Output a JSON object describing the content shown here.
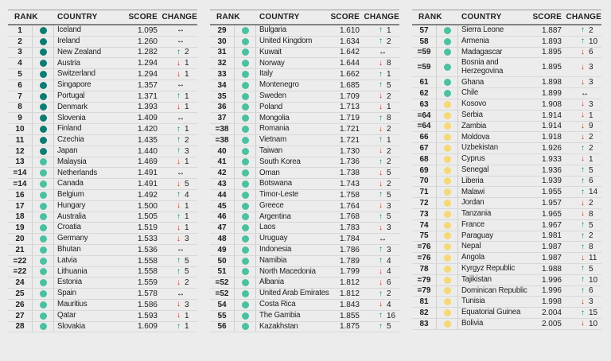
{
  "headers": {
    "rank": "RANK",
    "country": "COUNTRY",
    "score": "SCORE",
    "change": "CHANGE"
  },
  "icons": {
    "up": "↑",
    "down": "↓",
    "same": "↔"
  },
  "palette": {
    "tier_dark": "#0e7c72",
    "tier_green": "#4cc0a1",
    "tier_yellow": "#f5d878",
    "up": "#1e7d5a",
    "down": "#bf3527",
    "same": "#111111",
    "bg": "#ececec"
  },
  "tables": [
    {
      "rows": [
        {
          "rank": "1",
          "t": "dark",
          "country": "Iceland",
          "score": "1.095",
          "dir": "same",
          "n": ""
        },
        {
          "rank": "2",
          "t": "dark",
          "country": "Ireland",
          "score": "1.260",
          "dir": "same",
          "n": ""
        },
        {
          "rank": "3",
          "t": "dark",
          "country": "New Zealand",
          "score": "1.282",
          "dir": "up",
          "n": "2"
        },
        {
          "rank": "4",
          "t": "dark",
          "country": "Austria",
          "score": "1.294",
          "dir": "down",
          "n": "1"
        },
        {
          "rank": "5",
          "t": "dark",
          "country": "Switzerland",
          "score": "1.294",
          "dir": "down",
          "n": "1"
        },
        {
          "rank": "6",
          "t": "dark",
          "country": "Singapore",
          "score": "1.357",
          "dir": "same",
          "n": ""
        },
        {
          "rank": "7",
          "t": "dark",
          "country": "Portugal",
          "score": "1.371",
          "dir": "up",
          "n": "1"
        },
        {
          "rank": "8",
          "t": "dark",
          "country": "Denmark",
          "score": "1.393",
          "dir": "down",
          "n": "1"
        },
        {
          "rank": "9",
          "t": "dark",
          "country": "Slovenia",
          "score": "1.409",
          "dir": "same",
          "n": ""
        },
        {
          "rank": "10",
          "t": "dark",
          "country": "Finland",
          "score": "1.420",
          "dir": "up",
          "n": "1"
        },
        {
          "rank": "11",
          "t": "dark",
          "country": "Czechia",
          "score": "1.435",
          "dir": "up",
          "n": "2"
        },
        {
          "rank": "12",
          "t": "dark",
          "country": "Japan",
          "score": "1.440",
          "dir": "up",
          "n": "3"
        },
        {
          "rank": "13",
          "t": "green",
          "country": "Malaysia",
          "score": "1.469",
          "dir": "down",
          "n": "1"
        },
        {
          "rank": "=14",
          "t": "green",
          "country": "Netherlands",
          "score": "1.491",
          "dir": "same",
          "n": ""
        },
        {
          "rank": "=14",
          "t": "green",
          "country": "Canada",
          "score": "1.491",
          "dir": "down",
          "n": "5"
        },
        {
          "rank": "16",
          "t": "green",
          "country": "Belgium",
          "score": "1.492",
          "dir": "up",
          "n": "4"
        },
        {
          "rank": "17",
          "t": "green",
          "country": "Hungary",
          "score": "1.500",
          "dir": "down",
          "n": "1"
        },
        {
          "rank": "18",
          "t": "green",
          "country": "Australia",
          "score": "1.505",
          "dir": "up",
          "n": "1"
        },
        {
          "rank": "19",
          "t": "green",
          "country": "Croatia",
          "score": "1.519",
          "dir": "down",
          "n": "1"
        },
        {
          "rank": "20",
          "t": "green",
          "country": "Germany",
          "score": "1.533",
          "dir": "down",
          "n": "3"
        },
        {
          "rank": "21",
          "t": "green",
          "country": "Bhutan",
          "score": "1.536",
          "dir": "same",
          "n": ""
        },
        {
          "rank": "=22",
          "t": "green",
          "country": "Latvia",
          "score": "1.558",
          "dir": "up",
          "n": "5"
        },
        {
          "rank": "=22",
          "t": "green",
          "country": "Lithuania",
          "score": "1.558",
          "dir": "up",
          "n": "5"
        },
        {
          "rank": "24",
          "t": "green",
          "country": "Estonia",
          "score": "1.559",
          "dir": "down",
          "n": "2"
        },
        {
          "rank": "25",
          "t": "green",
          "country": "Spain",
          "score": "1.578",
          "dir": "same",
          "n": ""
        },
        {
          "rank": "26",
          "t": "green",
          "country": "Mauritius",
          "score": "1.586",
          "dir": "down",
          "n": "3"
        },
        {
          "rank": "27",
          "t": "green",
          "country": "Qatar",
          "score": "1.593",
          "dir": "down",
          "n": "1"
        },
        {
          "rank": "28",
          "t": "green",
          "country": "Slovakia",
          "score": "1.609",
          "dir": "up",
          "n": "1"
        }
      ]
    },
    {
      "rows": [
        {
          "rank": "29",
          "t": "green",
          "country": "Bulgaria",
          "score": "1.610",
          "dir": "up",
          "n": "1"
        },
        {
          "rank": "30",
          "t": "green",
          "country": "United Kingdom",
          "score": "1.634",
          "dir": "up",
          "n": "2"
        },
        {
          "rank": "31",
          "t": "green",
          "country": "Kuwait",
          "score": "1.642",
          "dir": "same",
          "n": ""
        },
        {
          "rank": "32",
          "t": "green",
          "country": "Norway",
          "score": "1.644",
          "dir": "down",
          "n": "8"
        },
        {
          "rank": "33",
          "t": "green",
          "country": "Italy",
          "score": "1.662",
          "dir": "up",
          "n": "1"
        },
        {
          "rank": "34",
          "t": "green",
          "country": "Montenegro",
          "score": "1.685",
          "dir": "up",
          "n": "5"
        },
        {
          "rank": "35",
          "t": "green",
          "country": "Sweden",
          "score": "1.709",
          "dir": "down",
          "n": "2"
        },
        {
          "rank": "36",
          "t": "green",
          "country": "Poland",
          "score": "1.713",
          "dir": "down",
          "n": "1"
        },
        {
          "rank": "37",
          "t": "green",
          "country": "Mongolia",
          "score": "1.719",
          "dir": "up",
          "n": "8"
        },
        {
          "rank": "=38",
          "t": "green",
          "country": "Romania",
          "score": "1.721",
          "dir": "down",
          "n": "2"
        },
        {
          "rank": "=38",
          "t": "green",
          "country": "Vietnam",
          "score": "1.721",
          "dir": "up",
          "n": "1"
        },
        {
          "rank": "40",
          "t": "green",
          "country": "Taiwan",
          "score": "1.730",
          "dir": "down",
          "n": "2"
        },
        {
          "rank": "41",
          "t": "green",
          "country": "South Korea",
          "score": "1.736",
          "dir": "up",
          "n": "2"
        },
        {
          "rank": "42",
          "t": "green",
          "country": "Oman",
          "score": "1.738",
          "dir": "down",
          "n": "5"
        },
        {
          "rank": "43",
          "t": "green",
          "country": "Botswana",
          "score": "1.743",
          "dir": "down",
          "n": "2"
        },
        {
          "rank": "44",
          "t": "green",
          "country": "Timor-Leste",
          "score": "1.758",
          "dir": "up",
          "n": "5"
        },
        {
          "rank": "45",
          "t": "green",
          "country": "Greece",
          "score": "1.764",
          "dir": "down",
          "n": "3"
        },
        {
          "rank": "46",
          "t": "green",
          "country": "Argentina",
          "score": "1.768",
          "dir": "up",
          "n": "5"
        },
        {
          "rank": "47",
          "t": "green",
          "country": "Laos",
          "score": "1.783",
          "dir": "down",
          "n": "3"
        },
        {
          "rank": "48",
          "t": "green",
          "country": "Uruguay",
          "score": "1.784",
          "dir": "same",
          "n": ""
        },
        {
          "rank": "49",
          "t": "green",
          "country": "Indonesia",
          "score": "1.786",
          "dir": "up",
          "n": "3"
        },
        {
          "rank": "50",
          "t": "green",
          "country": "Namibia",
          "score": "1.789",
          "dir": "up",
          "n": "4"
        },
        {
          "rank": "51",
          "t": "green",
          "country": "North Macedonia",
          "score": "1.799",
          "dir": "down",
          "n": "4"
        },
        {
          "rank": "=52",
          "t": "green",
          "country": "Albania",
          "score": "1.812",
          "dir": "down",
          "n": "6"
        },
        {
          "rank": "=52",
          "t": "green",
          "country": "United Arab Emirates",
          "score": "1.812",
          "dir": "up",
          "n": "2"
        },
        {
          "rank": "54",
          "t": "green",
          "country": "Costa Rica",
          "score": "1.843",
          "dir": "down",
          "n": "4"
        },
        {
          "rank": "55",
          "t": "green",
          "country": "The Gambia",
          "score": "1.855",
          "dir": "up",
          "n": "16"
        },
        {
          "rank": "56",
          "t": "green",
          "country": "Kazakhstan",
          "score": "1.875",
          "dir": "up",
          "n": "5"
        }
      ]
    },
    {
      "rows": [
        {
          "rank": "57",
          "t": "green",
          "country": "Sierra Leone",
          "score": "1.887",
          "dir": "up",
          "n": "2"
        },
        {
          "rank": "58",
          "t": "green",
          "country": "Armenia",
          "score": "1.893",
          "dir": "up",
          "n": "10"
        },
        {
          "rank": "=59",
          "t": "green",
          "country": "Madagascar",
          "score": "1.895",
          "dir": "down",
          "n": "6"
        },
        {
          "rank": "=59",
          "t": "green",
          "country": "Bosnia and Herzegovina",
          "score": "1.895",
          "dir": "down",
          "n": "3"
        },
        {
          "rank": "61",
          "t": "green",
          "country": "Ghana",
          "score": "1.898",
          "dir": "down",
          "n": "3"
        },
        {
          "rank": "62",
          "t": "green",
          "country": "Chile",
          "score": "1.899",
          "dir": "same",
          "n": ""
        },
        {
          "rank": "63",
          "t": "yellow",
          "country": "Kosovo",
          "score": "1.908",
          "dir": "down",
          "n": "3"
        },
        {
          "rank": "=64",
          "t": "yellow",
          "country": "Serbia",
          "score": "1.914",
          "dir": "down",
          "n": "1"
        },
        {
          "rank": "=64",
          "t": "yellow",
          "country": "Zambia",
          "score": "1.914",
          "dir": "down",
          "n": "9"
        },
        {
          "rank": "66",
          "t": "yellow",
          "country": "Moldova",
          "score": "1.918",
          "dir": "down",
          "n": "2"
        },
        {
          "rank": "67",
          "t": "yellow",
          "country": "Uzbekistan",
          "score": "1.926",
          "dir": "up",
          "n": "2"
        },
        {
          "rank": "68",
          "t": "yellow",
          "country": "Cyprus",
          "score": "1.933",
          "dir": "down",
          "n": "1"
        },
        {
          "rank": "69",
          "t": "yellow",
          "country": "Senegal",
          "score": "1.936",
          "dir": "up",
          "n": "5"
        },
        {
          "rank": "70",
          "t": "yellow",
          "country": "Liberia",
          "score": "1.939",
          "dir": "up",
          "n": "6"
        },
        {
          "rank": "71",
          "t": "yellow",
          "country": "Malawi",
          "score": "1.955",
          "dir": "up",
          "n": "14"
        },
        {
          "rank": "72",
          "t": "yellow",
          "country": "Jordan",
          "score": "1.957",
          "dir": "down",
          "n": "2"
        },
        {
          "rank": "73",
          "t": "yellow",
          "country": "Tanzania",
          "score": "1.965",
          "dir": "down",
          "n": "8"
        },
        {
          "rank": "74",
          "t": "yellow",
          "country": "France",
          "score": "1.967",
          "dir": "up",
          "n": "5"
        },
        {
          "rank": "75",
          "t": "yellow",
          "country": "Paraguay",
          "score": "1.981",
          "dir": "up",
          "n": "2"
        },
        {
          "rank": "=76",
          "t": "yellow",
          "country": "Nepal",
          "score": "1.987",
          "dir": "up",
          "n": "8"
        },
        {
          "rank": "=76",
          "t": "yellow",
          "country": "Angola",
          "score": "1.987",
          "dir": "down",
          "n": "11"
        },
        {
          "rank": "78",
          "t": "yellow",
          "country": "Kyrgyz Republic",
          "score": "1.988",
          "dir": "up",
          "n": "5"
        },
        {
          "rank": "=79",
          "t": "yellow",
          "country": "Tajikistan",
          "score": "1.996",
          "dir": "up",
          "n": "10"
        },
        {
          "rank": "=79",
          "t": "yellow",
          "country": "Dominican Republic",
          "score": "1.996",
          "dir": "up",
          "n": "6"
        },
        {
          "rank": "81",
          "t": "yellow",
          "country": "Tunisia",
          "score": "1.998",
          "dir": "down",
          "n": "3"
        },
        {
          "rank": "82",
          "t": "yellow",
          "country": "Equatorial Guinea",
          "score": "2.004",
          "dir": "up",
          "n": "15"
        },
        {
          "rank": "83",
          "t": "yellow",
          "country": "Bolivia",
          "score": "2.005",
          "dir": "down",
          "n": "10"
        }
      ]
    }
  ]
}
